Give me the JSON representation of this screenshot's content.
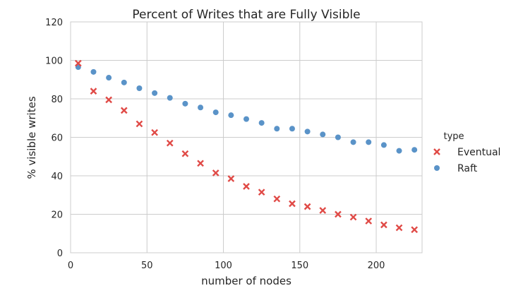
{
  "chart_data": {
    "type": "scatter",
    "title": "Percent of Writes that are Fully Visible",
    "xlabel": "number of nodes",
    "ylabel": "% visible writes",
    "xlim": [
      0,
      230
    ],
    "ylim": [
      0,
      120
    ],
    "xticks": [
      0,
      50,
      100,
      150,
      200
    ],
    "yticks": [
      0,
      20,
      40,
      60,
      80,
      100,
      120
    ],
    "grid": true,
    "legend": {
      "title": "type",
      "position": "right"
    },
    "series": [
      {
        "name": "Eventual",
        "marker": "x",
        "color": "#e04a46",
        "x": [
          5,
          15,
          25,
          35,
          45,
          55,
          65,
          75,
          85,
          95,
          105,
          115,
          125,
          135,
          145,
          155,
          165,
          175,
          185,
          195,
          205,
          215,
          225
        ],
        "y": [
          98.5,
          84,
          79.5,
          74,
          67,
          62.5,
          57,
          51.5,
          46.5,
          41.5,
          38.5,
          34.5,
          31.5,
          28,
          25.5,
          24,
          22,
          20,
          18.5,
          16.5,
          14.5,
          13,
          12
        ]
      },
      {
        "name": "Raft",
        "marker": "o",
        "color": "#5a93c8",
        "x": [
          5,
          15,
          25,
          35,
          45,
          55,
          65,
          75,
          85,
          95,
          105,
          115,
          125,
          135,
          145,
          155,
          165,
          175,
          185,
          195,
          205,
          215,
          225
        ],
        "y": [
          96.5,
          94,
          91,
          88.5,
          85.5,
          83,
          80.5,
          77.5,
          75.5,
          73,
          71.5,
          69.5,
          67.5,
          64.5,
          64.5,
          63,
          61.5,
          60,
          57.5,
          57.5,
          56,
          53,
          53.5
        ]
      }
    ]
  }
}
